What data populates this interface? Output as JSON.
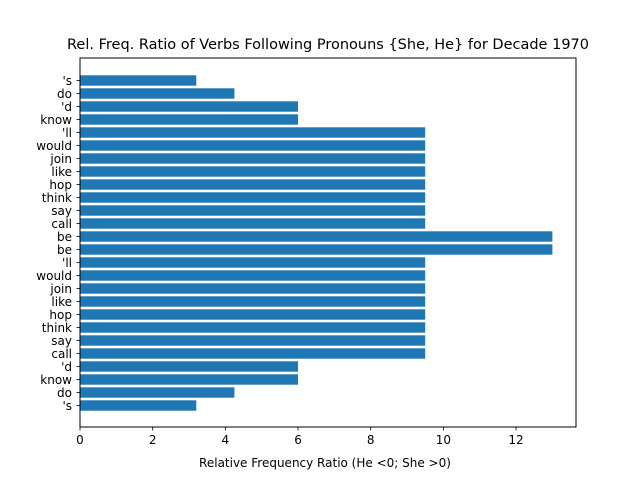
{
  "chart_data": {
    "type": "bar",
    "orientation": "horizontal",
    "title": "Rel. Freq. Ratio of Verbs Following Pronouns {She, He} for Decade 1970",
    "xlabel": "Relative Frequency Ratio (He <0; She >0)",
    "ylabel": "",
    "xlim": [
      0,
      13.65
    ],
    "xticks": [
      0,
      2,
      4,
      6,
      8,
      10,
      12
    ],
    "grid": false,
    "color": "#1f77b4",
    "categories": [
      "'s",
      "do",
      "'d",
      "know",
      "'ll",
      "would",
      "join",
      "like",
      "hop",
      "think",
      "say",
      "call",
      "be",
      "be",
      "'ll",
      "would",
      "join",
      "like",
      "hop",
      "think",
      "say",
      "call",
      "'d",
      "know",
      "do",
      "'s"
    ],
    "values": [
      3.2,
      4.25,
      6.0,
      6.0,
      9.5,
      9.5,
      9.5,
      9.5,
      9.5,
      9.5,
      9.5,
      9.5,
      13.0,
      13.0,
      9.5,
      9.5,
      9.5,
      9.5,
      9.5,
      9.5,
      9.5,
      9.5,
      6.0,
      6.0,
      4.25,
      3.2
    ]
  }
}
